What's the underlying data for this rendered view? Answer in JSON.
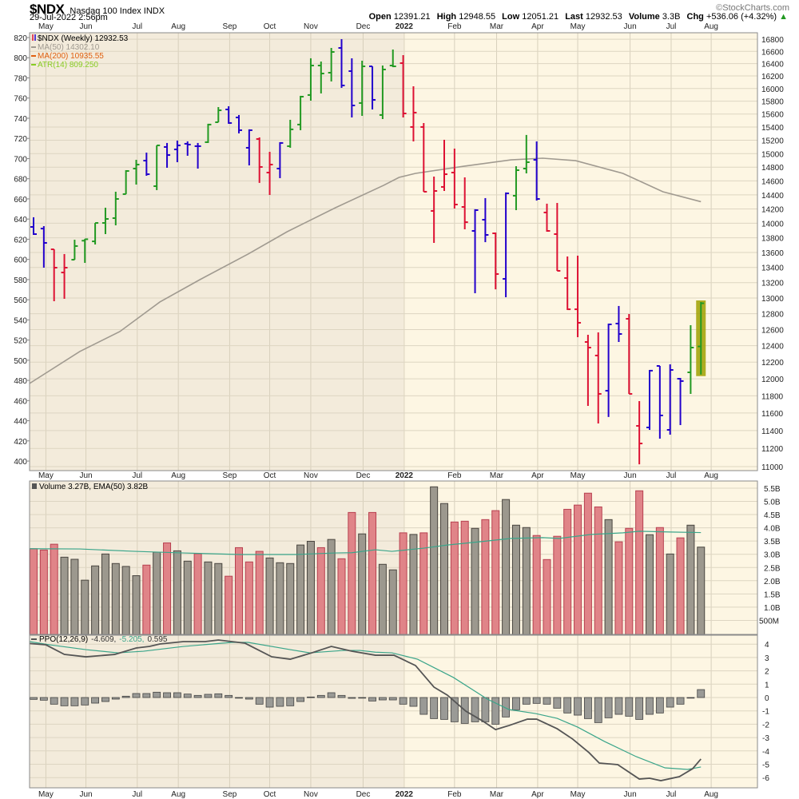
{
  "header": {
    "symbol": "$NDX",
    "name": "Nasdaq 100 Index",
    "exchange": "INDX",
    "copyright": "©StockCharts.com",
    "datetime": "29-Jul-2022 2:56pm",
    "quote": {
      "open_label": "Open",
      "open": "12391.21",
      "high_label": "High",
      "high": "12948.55",
      "low_label": "Low",
      "low": "12051.21",
      "last_label": "Last",
      "last": "12932.53",
      "volume_label": "Volume",
      "volume": "3.3B",
      "chg_label": "Chg",
      "chg": "+536.06 (+4.32%)",
      "chg_arrow": "▲"
    }
  },
  "colors": {
    "bar_up": "#229922",
    "bar_down_close": "#dd1133",
    "bar_other": "#2200cc",
    "ma50": "#a09a90",
    "ma200": "#e06010",
    "atr": "#88cc22",
    "vol_red": "#e08488",
    "vol_gray": "#9c988e",
    "ppo_line": "#555555",
    "signal_line": "#3aa58a",
    "bg_2021": "#f3ebdb",
    "bg_2022": "#fdf6e3",
    "highlight": "#a0a000"
  },
  "chart_data": [
    {
      "type": "ohlc",
      "title": "$NDX (Weekly) 12932.53",
      "legend": [
        {
          "label": "$NDX (Weekly) 12932.53"
        },
        {
          "label": "MA(50) 14302.10"
        },
        {
          "label": "MA(200) 10935.55"
        },
        {
          "label": "ATR(14) 809.250"
        }
      ],
      "scale": "log",
      "ylim": [
        11000,
        16800
      ],
      "right_ticks": [
        "16800",
        "16600",
        "16400",
        "16200",
        "16000",
        "15800",
        "15600",
        "15400",
        "15200",
        "15000",
        "14800",
        "14600",
        "14400",
        "14200",
        "14000",
        "13800",
        "13600",
        "13400",
        "13200",
        "13000",
        "12800",
        "12600",
        "12400",
        "12200",
        "12000",
        "11800",
        "11600",
        "11400",
        "11200",
        "11000"
      ],
      "left_ticks": [
        "820",
        "800",
        "780",
        "760",
        "740",
        "720",
        "700",
        "680",
        "660",
        "640",
        "620",
        "600",
        "580",
        "560",
        "540",
        "520",
        "500",
        "480",
        "460",
        "440",
        "420",
        "400"
      ],
      "x_months": [
        "May",
        "Jun",
        "Jul",
        "Aug",
        "Sep",
        "Oct",
        "Nov",
        "Dec",
        "2022",
        "Feb",
        "Mar",
        "Apr",
        "May",
        "Jun",
        "Jul",
        "Aug"
      ],
      "bar_colors": "bbrrgggggggbgbbbbggbbbrrbgggggbbgbggrrrrrrrbbrbggbrrrrrrbbrrbbbbgg",
      "ohlc": [
        [
          13949,
          14083,
          13839,
          13850
        ],
        [
          13926,
          13960,
          13397,
          13730
        ],
        [
          13643,
          13643,
          12959,
          13397
        ],
        [
          13333,
          13579,
          12990,
          13397
        ],
        [
          13503,
          13773,
          13503,
          13687
        ],
        [
          13760,
          13784,
          13461,
          13780
        ],
        [
          13751,
          14004,
          13708,
          14004
        ],
        [
          14004,
          14217,
          13850,
          14060
        ],
        [
          14071,
          14444,
          13971,
          14341
        ],
        [
          14410,
          14756,
          14410,
          14744
        ],
        [
          14779,
          14908,
          14547,
          14838
        ],
        [
          14896,
          15015,
          14674,
          14697
        ],
        [
          14524,
          15123,
          14467,
          15123
        ],
        [
          15099,
          15159,
          14791,
          14979
        ],
        [
          15063,
          15195,
          14873,
          15123
        ],
        [
          15147,
          15183,
          14968,
          15135
        ],
        [
          15111,
          15159,
          14779,
          15111
        ],
        [
          15171,
          15450,
          15159,
          15438
        ],
        [
          15474,
          15708,
          15474,
          15658
        ],
        [
          15671,
          15721,
          15450,
          15462
        ],
        [
          15547,
          15585,
          15304,
          15352
        ],
        [
          15087,
          15365,
          14826,
          15352
        ],
        [
          15219,
          15243,
          14571,
          14803
        ],
        [
          14721,
          15027,
          14398,
          14838
        ],
        [
          14779,
          15171,
          14640,
          15159
        ],
        [
          15111,
          15511,
          15087,
          15365
        ],
        [
          15438,
          15884,
          15352,
          15871
        ],
        [
          15897,
          16486,
          15808,
          16368
        ],
        [
          16368,
          16433,
          15922,
          16239
        ],
        [
          16252,
          16656,
          16112,
          16590
        ],
        [
          16656,
          16802,
          16010,
          16048
        ],
        [
          16278,
          16486,
          15548,
          15733
        ],
        [
          15771,
          16446,
          15572,
          16355
        ],
        [
          16355,
          16355,
          15671,
          15821
        ],
        [
          15585,
          16368,
          15523,
          16304
        ],
        [
          16368,
          16630,
          16342,
          16355
        ],
        [
          16407,
          16538,
          15548,
          15609
        ],
        [
          15401,
          16035,
          15183,
          15622
        ],
        [
          15401,
          15462,
          14444,
          14444
        ],
        [
          14172,
          14662,
          13730,
          14455
        ],
        [
          14513,
          15207,
          14455,
          14697
        ],
        [
          14721,
          15075,
          14206,
          14262
        ],
        [
          14228,
          14651,
          13916,
          14015
        ],
        [
          13894,
          14195,
          13062,
          14183
        ],
        [
          14049,
          14353,
          13740,
          13839
        ],
        [
          13861,
          13872,
          13113,
          13313
        ],
        [
          13249,
          14433,
          13010,
          14421
        ],
        [
          14387,
          14814,
          14183,
          14756
        ],
        [
          14779,
          15280,
          14709,
          14873
        ],
        [
          14908,
          15183,
          14319,
          14341
        ],
        [
          14150,
          14274,
          13883,
          13894
        ],
        [
          13850,
          14285,
          13355,
          13355
        ],
        [
          13260,
          13546,
          12846,
          12856
        ],
        [
          12856,
          13557,
          12505,
          12685
        ],
        [
          12446,
          12535,
          11682,
          12377
        ],
        [
          12280,
          12565,
          11480,
          11822
        ],
        [
          11859,
          12675,
          11554,
          12665
        ],
        [
          12675,
          12898,
          12446,
          12545
        ],
        [
          12735,
          12796,
          11822,
          11822
        ],
        [
          11453,
          11738,
          11025,
          11255
        ],
        [
          11435,
          12106,
          11408,
          12097
        ],
        [
          12154,
          12154,
          11309,
          11572
        ],
        [
          11408,
          12173,
          11354,
          12106
        ],
        [
          12001,
          12010,
          11462,
          11973
        ],
        [
          12077,
          12655,
          11822,
          12377
        ],
        [
          12391.21,
          12948.55,
          12051.21,
          12932.53
        ]
      ],
      "ma50": [
        [
          -0.4,
          11944
        ],
        [
          4.5,
          12329
        ],
        [
          8.4,
          12575
        ],
        [
          12.3,
          12949
        ],
        [
          16.2,
          13239
        ],
        [
          20.9,
          13579
        ],
        [
          24.7,
          13883
        ],
        [
          29.4,
          14217
        ],
        [
          34.1,
          14536
        ],
        [
          35.6,
          14651
        ],
        [
          37.2,
          14709
        ],
        [
          41.9,
          14814
        ],
        [
          46.5,
          14908
        ],
        [
          49.6,
          14932
        ],
        [
          52.8,
          14896
        ],
        [
          57.4,
          14709
        ],
        [
          61.3,
          14444
        ],
        [
          65,
          14302.1
        ]
      ]
    },
    {
      "type": "bar",
      "legend": "Volume 3.27B, EMA(50) 3.82B",
      "ylim": [
        0,
        5.6
      ],
      "right_ticks": [
        "5.5B",
        "5.0B",
        "4.5B",
        "4.0B",
        "3.5B",
        "3.0B",
        "2.5B",
        "2.0B",
        "1.5B",
        "1.0B",
        "500M"
      ],
      "bar_colors": "rrrggggggggrgrggrggrrrrgggggrgrrgrggrgrggrrgrrgggrrrrrrrgrrrgrgrgg",
      "values_billions": [
        3.21,
        3.16,
        3.38,
        2.89,
        2.81,
        2.02,
        2.56,
        3.01,
        2.65,
        2.54,
        2.19,
        2.59,
        3.08,
        3.43,
        3.13,
        2.74,
        3.02,
        2.71,
        2.65,
        2.17,
        3.25,
        2.71,
        3.11,
        2.86,
        2.68,
        2.65,
        3.35,
        3.49,
        3.25,
        3.56,
        2.83,
        4.58,
        3.77,
        4.58,
        2.62,
        2.41,
        3.81,
        3.75,
        3.81,
        5.55,
        4.92,
        4.22,
        4.25,
        3.98,
        4.31,
        4.65,
        5.07,
        4.1,
        4.01,
        3.71,
        2.8,
        3.68,
        4.7,
        4.86,
        5.31,
        4.79,
        4.31,
        3.47,
        3.98,
        5.4,
        3.74,
        4.01,
        3.01,
        3.62,
        4.1,
        3.27
      ],
      "ema50": [
        [
          -0.4,
          3.21
        ],
        [
          4.5,
          3.2
        ],
        [
          9.9,
          3.11
        ],
        [
          14.6,
          3.05
        ],
        [
          20.1,
          2.99
        ],
        [
          25.5,
          2.99
        ],
        [
          29.4,
          3.05
        ],
        [
          31,
          3.06
        ],
        [
          33.3,
          3.17
        ],
        [
          34.9,
          3.11
        ],
        [
          38,
          3.23
        ],
        [
          40.3,
          3.35
        ],
        [
          43.4,
          3.47
        ],
        [
          46.5,
          3.6
        ],
        [
          49.6,
          3.63
        ],
        [
          51.2,
          3.6
        ],
        [
          54.3,
          3.75
        ],
        [
          57.4,
          3.81
        ],
        [
          59,
          3.87
        ],
        [
          62.1,
          3.84
        ],
        [
          65,
          3.82
        ]
      ]
    },
    {
      "type": "line",
      "legend_prefix": "PPO(12,26,9)",
      "legend_ppo": "-4.609,",
      "legend_signal": "-5.205,",
      "legend_hist": "0.595",
      "ylim": [
        -6.7,
        4.6
      ],
      "right_ticks": [
        "4",
        "3",
        "2",
        "1",
        "0",
        "-1",
        "-2",
        "-3",
        "-4",
        "-5",
        "-6"
      ],
      "x_months": [
        "May",
        "Jun",
        "Jul",
        "Aug",
        "Sep",
        "Oct",
        "Nov",
        "Dec",
        "2022",
        "Feb",
        "Mar",
        "Apr",
        "May",
        "Jun",
        "Jul",
        "Aug"
      ],
      "ppo": [
        [
          -0.4,
          4.05
        ],
        [
          1.2,
          3.95
        ],
        [
          3.0,
          3.23
        ],
        [
          5.1,
          3.05
        ],
        [
          7.9,
          3.23
        ],
        [
          10.0,
          3.71
        ],
        [
          11.3,
          3.83
        ],
        [
          12.3,
          4.01
        ],
        [
          14.6,
          4.19
        ],
        [
          16.7,
          4.19
        ],
        [
          18.0,
          4.31
        ],
        [
          20.6,
          4.07
        ],
        [
          23.2,
          3.05
        ],
        [
          25.0,
          2.87
        ],
        [
          27.1,
          3.35
        ],
        [
          29.0,
          3.83
        ],
        [
          31.0,
          3.47
        ],
        [
          33.3,
          3.17
        ],
        [
          35.1,
          3.17
        ],
        [
          37.2,
          2.4
        ],
        [
          39.0,
          0.78
        ],
        [
          40.3,
          0.18
        ],
        [
          42.1,
          -1.02
        ],
        [
          43.7,
          -1.74
        ],
        [
          45.0,
          -2.4
        ],
        [
          46.3,
          -2.1
        ],
        [
          48.1,
          -1.62
        ],
        [
          49.0,
          -1.62
        ],
        [
          51.0,
          -2.34
        ],
        [
          52.5,
          -3.11
        ],
        [
          54.1,
          -4.13
        ],
        [
          55.1,
          -4.91
        ],
        [
          56.9,
          -5.03
        ],
        [
          59.0,
          -6.11
        ],
        [
          60.0,
          -6.05
        ],
        [
          61.1,
          -6.23
        ],
        [
          62.9,
          -5.93
        ],
        [
          64.2,
          -5.33
        ],
        [
          65,
          -4.609
        ]
      ],
      "signal": [
        [
          -0.4,
          4.19
        ],
        [
          1.6,
          3.95
        ],
        [
          5.1,
          3.59
        ],
        [
          8.2,
          3.35
        ],
        [
          10.7,
          3.47
        ],
        [
          14.6,
          3.83
        ],
        [
          19.3,
          4.13
        ],
        [
          20.9,
          4.13
        ],
        [
          25.0,
          3.59
        ],
        [
          26.9,
          3.35
        ],
        [
          30.2,
          3.53
        ],
        [
          31.8,
          3.53
        ],
        [
          33.3,
          3.4
        ],
        [
          34.9,
          3.35
        ],
        [
          37.4,
          2.87
        ],
        [
          40.9,
          1.5
        ],
        [
          44.2,
          -0.12
        ],
        [
          46.3,
          -0.9
        ],
        [
          48.9,
          -1.2
        ],
        [
          51.0,
          -1.56
        ],
        [
          53.0,
          -2.22
        ],
        [
          55.6,
          -3.29
        ],
        [
          58.7,
          -4.43
        ],
        [
          61.5,
          -5.27
        ],
        [
          63.7,
          -5.39
        ],
        [
          65,
          -5.205
        ]
      ],
      "histogram": [
        -0.14,
        -0.2,
        -0.5,
        -0.62,
        -0.62,
        -0.56,
        -0.42,
        -0.3,
        -0.12,
        0.1,
        0.3,
        0.3,
        0.4,
        0.36,
        0.36,
        0.26,
        0.16,
        0.24,
        0.28,
        0.16,
        0.0,
        -0.12,
        -0.5,
        -0.72,
        -0.66,
        -0.62,
        -0.3,
        0.04,
        0.16,
        0.36,
        0.16,
        -0.06,
        0.0,
        -0.26,
        -0.18,
        -0.18,
        -0.5,
        -0.66,
        -1.26,
        -1.58,
        -1.64,
        -1.82,
        -1.94,
        -1.82,
        -1.82,
        -2.0,
        -1.46,
        -0.92,
        -0.5,
        -0.44,
        -0.5,
        -0.8,
        -1.16,
        -1.32,
        -1.58,
        -1.88,
        -1.52,
        -1.26,
        -1.4,
        -1.64,
        -1.26,
        -1.16,
        -0.72,
        -0.5,
        -0.02,
        0.595
      ]
    }
  ]
}
